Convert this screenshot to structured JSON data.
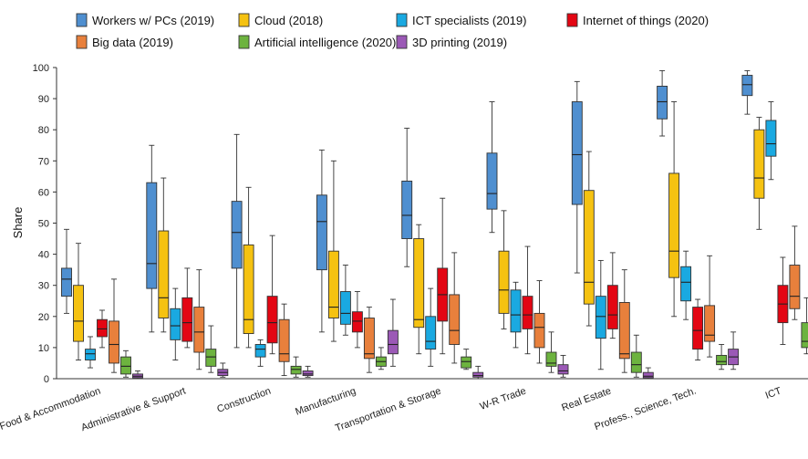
{
  "chart_data": {
    "type": "boxplot",
    "ylabel": "Share",
    "ylim": [
      0,
      100
    ],
    "yticks": [
      0,
      10,
      20,
      30,
      40,
      50,
      60,
      70,
      80,
      90,
      100
    ],
    "categories": [
      "Food & Accommodation",
      "Administrative & Support",
      "Construction",
      "Manufacturing",
      "Transportation & Storage",
      "W-R Trade",
      "Real Estate",
      "Profess., Science, Tech.",
      "ICT"
    ],
    "legend_placement": "top",
    "series": [
      {
        "name": "Workers w/ PCs (2019)",
        "color": "#4f8fd0",
        "boxes": [
          [
            21,
            26.5,
            32,
            35.5,
            48
          ],
          [
            15,
            29,
            37,
            63,
            75
          ],
          [
            10,
            35.5,
            47,
            57,
            78.5
          ],
          [
            15,
            35,
            50.5,
            59,
            73.5
          ],
          [
            36,
            45,
            52.5,
            63.5,
            80.5
          ],
          [
            47,
            54.5,
            59.5,
            72.5,
            89
          ],
          [
            34,
            56,
            72,
            89,
            95.5
          ],
          [
            78,
            83.5,
            89,
            94,
            99
          ],
          [
            85,
            91,
            94.5,
            97.5,
            99
          ]
        ]
      },
      {
        "name": "Cloud (2018)",
        "color": "#f5c211",
        "boxes": [
          [
            6,
            12,
            18.5,
            30,
            43.5
          ],
          [
            15,
            19.5,
            26,
            47.5,
            64.5
          ],
          [
            10,
            14.5,
            19,
            43,
            61.5
          ],
          [
            12,
            19.5,
            23,
            41,
            70
          ],
          [
            8,
            16.5,
            19,
            45,
            49.5
          ],
          [
            16,
            21,
            28.5,
            41,
            54
          ],
          [
            17,
            24,
            31,
            60.5,
            73
          ],
          [
            20,
            32.5,
            41,
            66,
            89
          ],
          [
            48,
            58,
            64.5,
            80,
            84
          ]
        ]
      },
      {
        "name": "ICT specialists (2019)",
        "color": "#1aa9e1",
        "boxes": [
          [
            3.5,
            6,
            8,
            9.5,
            13.5
          ],
          [
            6,
            12.5,
            17,
            22.5,
            29
          ],
          [
            4,
            7,
            9.5,
            11,
            12.5
          ],
          [
            14,
            17.5,
            21,
            28,
            36.5
          ],
          [
            4,
            9.5,
            12,
            20,
            29
          ],
          [
            10,
            15,
            20.5,
            28.5,
            31
          ],
          [
            3,
            13,
            20,
            26.5,
            38
          ],
          [
            19,
            25,
            31,
            36,
            41
          ],
          [
            64,
            71.5,
            75.5,
            83,
            89
          ]
        ]
      },
      {
        "name": "Internet of things (2020)",
        "color": "#e30613",
        "boxes": [
          [
            10,
            13.5,
            16,
            19,
            22
          ],
          [
            10,
            12,
            18,
            26,
            35.5
          ],
          [
            8,
            11.5,
            18,
            26.5,
            46
          ],
          [
            10,
            15,
            18.5,
            21.5,
            28
          ],
          [
            8,
            18.5,
            27,
            35.5,
            58
          ],
          [
            8,
            16,
            20.5,
            26.5,
            42.5
          ],
          [
            13,
            16,
            20.5,
            30,
            40.5
          ],
          [
            6,
            9.5,
            15.5,
            23,
            25.5
          ],
          [
            11,
            18,
            24,
            30,
            39
          ]
        ]
      },
      {
        "name": "Big data (2019)",
        "color": "#e8803c",
        "boxes": [
          [
            2,
            5,
            11,
            18.5,
            32
          ],
          [
            3,
            8.5,
            15,
            23,
            35
          ],
          [
            1,
            5.5,
            8,
            19,
            24
          ],
          [
            2,
            6.5,
            8,
            19.5,
            23
          ],
          [
            5,
            11,
            15.5,
            27,
            40.5
          ],
          [
            5,
            10,
            16.5,
            21,
            31.5
          ],
          [
            2,
            6.5,
            8,
            24.5,
            35
          ],
          [
            7,
            12,
            14,
            23.5,
            39.5
          ],
          [
            19,
            22.5,
            26.5,
            36.5,
            49
          ]
        ]
      },
      {
        "name": "Artificial intelligence (2020)",
        "color": "#6db33f",
        "boxes": [
          [
            0.5,
            1.5,
            4,
            7,
            9
          ],
          [
            2,
            4,
            7,
            9.5,
            17
          ],
          [
            0.5,
            1.5,
            3,
            4,
            7
          ],
          [
            3,
            4,
            5.5,
            7,
            10
          ],
          [
            3,
            3.5,
            5.5,
            7,
            9.5
          ],
          [
            2,
            4,
            5,
            8.5,
            15
          ],
          [
            0.5,
            2,
            4.5,
            8.5,
            14
          ],
          [
            3,
            4.5,
            5.5,
            7.5,
            11
          ],
          [
            8,
            10,
            12,
            18,
            26
          ]
        ]
      },
      {
        "name": "3D printing (2019)",
        "color": "#9b59b6",
        "boxes": [
          [
            0,
            0.3,
            0.8,
            1.5,
            2.5
          ],
          [
            0.5,
            1,
            2,
            3,
            5
          ],
          [
            0.5,
            1,
            1.5,
            2.5,
            4
          ],
          [
            4,
            8,
            11,
            15.5,
            25.5
          ],
          [
            0,
            0.5,
            1,
            2,
            4
          ],
          [
            0.5,
            1.5,
            2.5,
            4.5,
            7.5
          ],
          [
            0,
            0.3,
            0.8,
            2,
            3.5
          ],
          [
            3,
            4.5,
            7,
            9.5,
            15
          ],
          [
            3.5,
            4.5,
            6,
            8.5,
            10.5
          ]
        ]
      }
    ]
  }
}
